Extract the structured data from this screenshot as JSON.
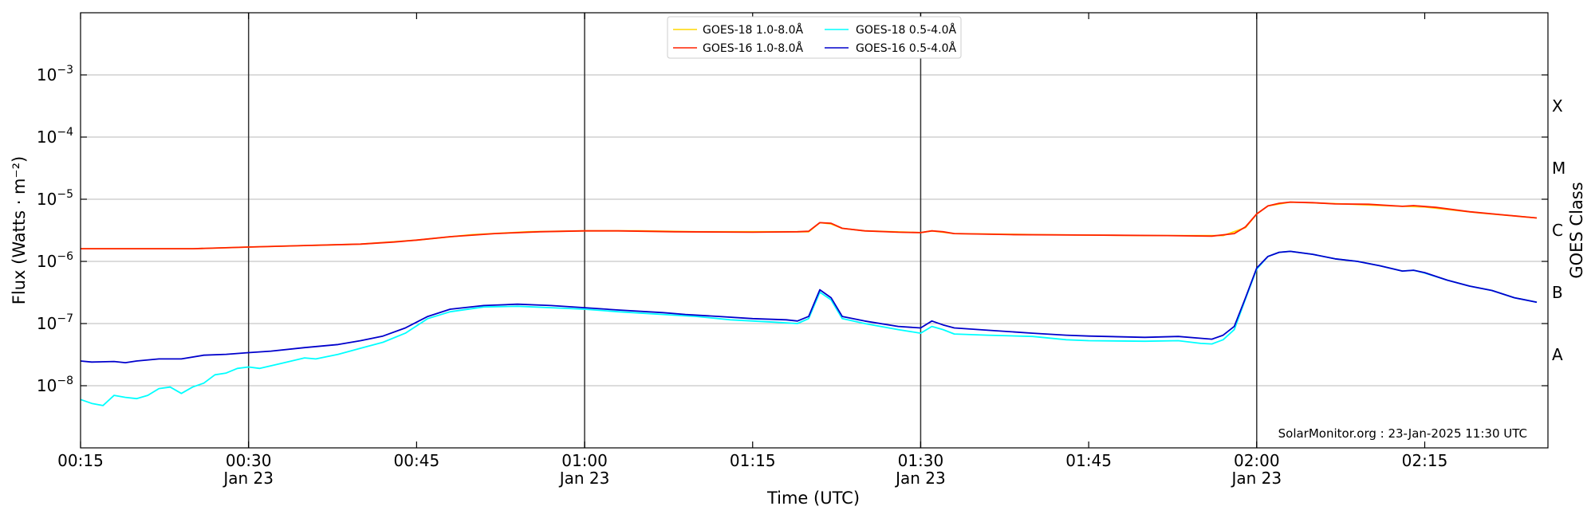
{
  "chart_data": {
    "type": "line",
    "xlabel": "Time (UTC)",
    "ylabel": "Flux (Watts · m⁻²)",
    "ylabel_right": "GOES Class",
    "y_scale": "log",
    "ylim": [
      1e-09,
      0.01
    ],
    "xlim": [
      "00:15",
      "02:26"
    ],
    "grid": "horizontal",
    "legend_position": "top-center",
    "credit": "SolarMonitor.org : 23-Jan-2025 11:30 UTC",
    "x_ticks": [
      {
        "time": "00:15",
        "label": "00:15",
        "sub": ""
      },
      {
        "time": "00:30",
        "label": "00:30",
        "sub": "Jan 23"
      },
      {
        "time": "00:45",
        "label": "00:45",
        "sub": ""
      },
      {
        "time": "01:00",
        "label": "01:00",
        "sub": "Jan 23"
      },
      {
        "time": "01:15",
        "label": "01:15",
        "sub": ""
      },
      {
        "time": "01:30",
        "label": "01:30",
        "sub": "Jan 23"
      },
      {
        "time": "01:45",
        "label": "01:45",
        "sub": ""
      },
      {
        "time": "02:00",
        "label": "02:00",
        "sub": "Jan 23"
      },
      {
        "time": "02:15",
        "label": "02:15",
        "sub": ""
      }
    ],
    "y_ticks": [
      {
        "value": 1e-08,
        "base": "10",
        "exp": "−8"
      },
      {
        "value": 1e-07,
        "base": "10",
        "exp": "−7"
      },
      {
        "value": 1e-06,
        "base": "10",
        "exp": "−6"
      },
      {
        "value": 1e-05,
        "base": "10",
        "exp": "−5"
      },
      {
        "value": 0.0001,
        "base": "10",
        "exp": "−4"
      },
      {
        "value": 0.001,
        "base": "10",
        "exp": "−3"
      }
    ],
    "class_labels": [
      {
        "label": "A",
        "value": 3.16e-08
      },
      {
        "label": "B",
        "value": 3.16e-07
      },
      {
        "label": "C",
        "value": 3.16e-06
      },
      {
        "label": "M",
        "value": 3.16e-05
      },
      {
        "label": "X",
        "value": 0.000316
      }
    ],
    "vlines": [
      "00:30",
      "01:00",
      "01:30",
      "02:00"
    ],
    "legend": [
      {
        "name": "GOES-18 1.0-8.0Å",
        "color": "#FFD700"
      },
      {
        "name": "GOES-18 0.5-4.0Å",
        "color": "#00FFFF"
      },
      {
        "name": "GOES-16 1.0-8.0Å",
        "color": "#FF2000"
      },
      {
        "name": "GOES-16 0.5-4.0Å",
        "color": "#0000CC"
      }
    ],
    "series": [
      {
        "name": "GOES-18 1.0-8.0Å",
        "color": "#FFD700",
        "points": [
          [
            "00:15",
            1.6e-06
          ],
          [
            "00:25",
            1.6e-06
          ],
          [
            "00:30",
            1.7e-06
          ],
          [
            "00:40",
            1.9e-06
          ],
          [
            "00:45",
            2.2e-06
          ],
          [
            "00:50",
            2.7e-06
          ],
          [
            "00:55",
            3e-06
          ],
          [
            "01:00",
            3.1e-06
          ],
          [
            "01:05",
            3.1e-06
          ],
          [
            "01:10",
            3e-06
          ],
          [
            "01:15",
            3e-06
          ],
          [
            "01:20",
            3e-06
          ],
          [
            "01:21",
            4.2e-06
          ],
          [
            "01:22",
            4e-06
          ],
          [
            "01:23",
            3.4e-06
          ],
          [
            "01:25",
            3.1e-06
          ],
          [
            "01:30",
            2.9e-06
          ],
          [
            "01:31",
            3.1e-06
          ],
          [
            "01:33",
            2.8e-06
          ],
          [
            "01:40",
            2.7e-06
          ],
          [
            "01:50",
            2.6e-06
          ],
          [
            "01:57",
            2.6e-06
          ],
          [
            "01:59",
            3.5e-06
          ],
          [
            "02:00",
            5.8e-06
          ],
          [
            "02:01",
            7.8e-06
          ],
          [
            "02:03",
            9e-06
          ],
          [
            "02:07",
            8.5e-06
          ],
          [
            "02:12",
            7.8e-06
          ],
          [
            "02:15",
            7.5e-06
          ],
          [
            "02:20",
            6e-06
          ],
          [
            "02:25",
            5e-06
          ]
        ]
      },
      {
        "name": "GOES-16 1.0-8.0Å",
        "color": "#FF2000",
        "points": [
          [
            "00:15",
            1.6e-06
          ],
          [
            "00:20",
            1.6e-06
          ],
          [
            "00:25",
            1.6e-06
          ],
          [
            "00:30",
            1.7e-06
          ],
          [
            "00:35",
            1.8e-06
          ],
          [
            "00:40",
            1.9e-06
          ],
          [
            "00:43",
            2.05e-06
          ],
          [
            "00:45",
            2.2e-06
          ],
          [
            "00:48",
            2.5e-06
          ],
          [
            "00:52",
            2.8e-06
          ],
          [
            "00:56",
            3e-06
          ],
          [
            "01:00",
            3.1e-06
          ],
          [
            "01:03",
            3.1e-06
          ],
          [
            "01:08",
            3e-06
          ],
          [
            "01:15",
            2.95e-06
          ],
          [
            "01:19",
            3e-06
          ],
          [
            "01:20",
            3.05e-06
          ],
          [
            "01:21",
            4.2e-06
          ],
          [
            "01:22",
            4.1e-06
          ],
          [
            "01:23",
            3.4e-06
          ],
          [
            "01:25",
            3.1e-06
          ],
          [
            "01:28",
            2.95e-06
          ],
          [
            "01:30",
            2.9e-06
          ],
          [
            "01:31",
            3.1e-06
          ],
          [
            "01:32",
            3e-06
          ],
          [
            "01:33",
            2.8e-06
          ],
          [
            "01:38",
            2.7e-06
          ],
          [
            "01:45",
            2.65e-06
          ],
          [
            "01:52",
            2.6e-06
          ],
          [
            "01:56",
            2.55e-06
          ],
          [
            "01:58",
            2.8e-06
          ],
          [
            "01:59",
            3.6e-06
          ],
          [
            "02:00",
            5.8e-06
          ],
          [
            "02:01",
            7.8e-06
          ],
          [
            "02:02",
            8.6e-06
          ],
          [
            "02:03",
            9e-06
          ],
          [
            "02:05",
            8.8e-06
          ],
          [
            "02:07",
            8.4e-06
          ],
          [
            "02:10",
            8.3e-06
          ],
          [
            "02:13",
            7.7e-06
          ],
          [
            "02:14",
            7.9e-06
          ],
          [
            "02:16",
            7.4e-06
          ],
          [
            "02:19",
            6.3e-06
          ],
          [
            "02:22",
            5.6e-06
          ],
          [
            "02:25",
            5e-06
          ]
        ]
      },
      {
        "name": "GOES-18 0.5-4.0Å",
        "color": "#00FFFF",
        "points": [
          [
            "00:15",
            6e-09
          ],
          [
            "00:16",
            5.2e-09
          ],
          [
            "00:17",
            4.8e-09
          ],
          [
            "00:18",
            7e-09
          ],
          [
            "00:19",
            6.5e-09
          ],
          [
            "00:20",
            6.2e-09
          ],
          [
            "00:21",
            7e-09
          ],
          [
            "00:22",
            9e-09
          ],
          [
            "00:23",
            9.5e-09
          ],
          [
            "00:24",
            7.5e-09
          ],
          [
            "00:25",
            9.5e-09
          ],
          [
            "00:26",
            1.1e-08
          ],
          [
            "00:27",
            1.5e-08
          ],
          [
            "00:28",
            1.6e-08
          ],
          [
            "00:29",
            1.9e-08
          ],
          [
            "00:30",
            2e-08
          ],
          [
            "00:31",
            1.9e-08
          ],
          [
            "00:33",
            2.3e-08
          ],
          [
            "00:35",
            2.8e-08
          ],
          [
            "00:36",
            2.7e-08
          ],
          [
            "00:38",
            3.2e-08
          ],
          [
            "00:40",
            4e-08
          ],
          [
            "00:42",
            5e-08
          ],
          [
            "00:44",
            7e-08
          ],
          [
            "00:46",
            1.2e-07
          ],
          [
            "00:48",
            1.55e-07
          ],
          [
            "00:51",
            1.85e-07
          ],
          [
            "00:54",
            1.9e-07
          ],
          [
            "00:57",
            1.8e-07
          ],
          [
            "01:00",
            1.7e-07
          ],
          [
            "01:03",
            1.55e-07
          ],
          [
            "01:07",
            1.4e-07
          ],
          [
            "01:10",
            1.3e-07
          ],
          [
            "01:13",
            1.15e-07
          ],
          [
            "01:17",
            1.05e-07
          ],
          [
            "01:19",
            1e-07
          ],
          [
            "01:20",
            1.2e-07
          ],
          [
            "01:21",
            3.2e-07
          ],
          [
            "01:22",
            2.4e-07
          ],
          [
            "01:23",
            1.2e-07
          ],
          [
            "01:25",
            1e-07
          ],
          [
            "01:28",
            8e-08
          ],
          [
            "01:30",
            7e-08
          ],
          [
            "01:31",
            9e-08
          ],
          [
            "01:32",
            8e-08
          ],
          [
            "01:33",
            6.8e-08
          ],
          [
            "01:36",
            6.5e-08
          ],
          [
            "01:40",
            6.2e-08
          ],
          [
            "01:43",
            5.5e-08
          ],
          [
            "01:45",
            5.3e-08
          ],
          [
            "01:50",
            5.2e-08
          ],
          [
            "01:53",
            5.3e-08
          ],
          [
            "01:55",
            4.8e-08
          ],
          [
            "01:56",
            4.7e-08
          ],
          [
            "01:57",
            5.5e-08
          ],
          [
            "01:58",
            8e-08
          ],
          [
            "01:59",
            2.5e-07
          ],
          [
            "02:00",
            7.5e-07
          ],
          [
            "02:01",
            1.2e-06
          ],
          [
            "02:02",
            1.4e-06
          ],
          [
            "02:03",
            1.45e-06
          ],
          [
            "02:05",
            1.3e-06
          ],
          [
            "02:07",
            1.1e-06
          ],
          [
            "02:09",
            1e-06
          ],
          [
            "02:11",
            8.5e-07
          ],
          [
            "02:13",
            7e-07
          ],
          [
            "02:14",
            7.2e-07
          ],
          [
            "02:15",
            6.5e-07
          ],
          [
            "02:17",
            5e-07
          ],
          [
            "02:19",
            4e-07
          ],
          [
            "02:21",
            3.4e-07
          ],
          [
            "02:23",
            2.6e-07
          ],
          [
            "02:25",
            2.2e-07
          ]
        ]
      },
      {
        "name": "GOES-16 0.5-4.0Å",
        "color": "#0000CC",
        "points": [
          [
            "00:15",
            2.5e-08
          ],
          [
            "00:16",
            2.4e-08
          ],
          [
            "00:18",
            2.45e-08
          ],
          [
            "00:19",
            2.35e-08
          ],
          [
            "00:20",
            2.5e-08
          ],
          [
            "00:22",
            2.7e-08
          ],
          [
            "00:24",
            2.7e-08
          ],
          [
            "00:26",
            3.1e-08
          ],
          [
            "00:28",
            3.2e-08
          ],
          [
            "00:30",
            3.4e-08
          ],
          [
            "00:32",
            3.6e-08
          ],
          [
            "00:35",
            4.1e-08
          ],
          [
            "00:38",
            4.6e-08
          ],
          [
            "00:40",
            5.3e-08
          ],
          [
            "00:42",
            6.3e-08
          ],
          [
            "00:44",
            8.5e-08
          ],
          [
            "00:46",
            1.3e-07
          ],
          [
            "00:48",
            1.7e-07
          ],
          [
            "00:51",
            1.95e-07
          ],
          [
            "00:54",
            2.05e-07
          ],
          [
            "00:57",
            1.95e-07
          ],
          [
            "01:00",
            1.8e-07
          ],
          [
            "01:03",
            1.65e-07
          ],
          [
            "01:07",
            1.5e-07
          ],
          [
            "01:09",
            1.4e-07
          ],
          [
            "01:12",
            1.3e-07
          ],
          [
            "01:15",
            1.2e-07
          ],
          [
            "01:18",
            1.15e-07
          ],
          [
            "01:19",
            1.1e-07
          ],
          [
            "01:20",
            1.3e-07
          ],
          [
            "01:21",
            3.5e-07
          ],
          [
            "01:22",
            2.6e-07
          ],
          [
            "01:23",
            1.3e-07
          ],
          [
            "01:25",
            1.1e-07
          ],
          [
            "01:28",
            9e-08
          ],
          [
            "01:30",
            8.5e-08
          ],
          [
            "01:31",
            1.1e-07
          ],
          [
            "01:32",
            9.5e-08
          ],
          [
            "01:33",
            8.5e-08
          ],
          [
            "01:36",
            7.8e-08
          ],
          [
            "01:40",
            7e-08
          ],
          [
            "01:43",
            6.5e-08
          ],
          [
            "01:45",
            6.3e-08
          ],
          [
            "01:50",
            6e-08
          ],
          [
            "01:53",
            6.2e-08
          ],
          [
            "01:55",
            5.8e-08
          ],
          [
            "01:56",
            5.6e-08
          ],
          [
            "01:57",
            6.5e-08
          ],
          [
            "01:58",
            9e-08
          ],
          [
            "01:59",
            2.6e-07
          ],
          [
            "02:00",
            7.8e-07
          ],
          [
            "02:01",
            1.2e-06
          ],
          [
            "02:02",
            1.4e-06
          ],
          [
            "02:03",
            1.45e-06
          ],
          [
            "02:05",
            1.3e-06
          ],
          [
            "02:07",
            1.1e-06
          ],
          [
            "02:09",
            1e-06
          ],
          [
            "02:11",
            8.5e-07
          ],
          [
            "02:13",
            7e-07
          ],
          [
            "02:14",
            7.2e-07
          ],
          [
            "02:15",
            6.6e-07
          ],
          [
            "02:17",
            5e-07
          ],
          [
            "02:19",
            4e-07
          ],
          [
            "02:21",
            3.4e-07
          ],
          [
            "02:23",
            2.6e-07
          ],
          [
            "02:25",
            2.2e-07
          ]
        ]
      }
    ]
  }
}
